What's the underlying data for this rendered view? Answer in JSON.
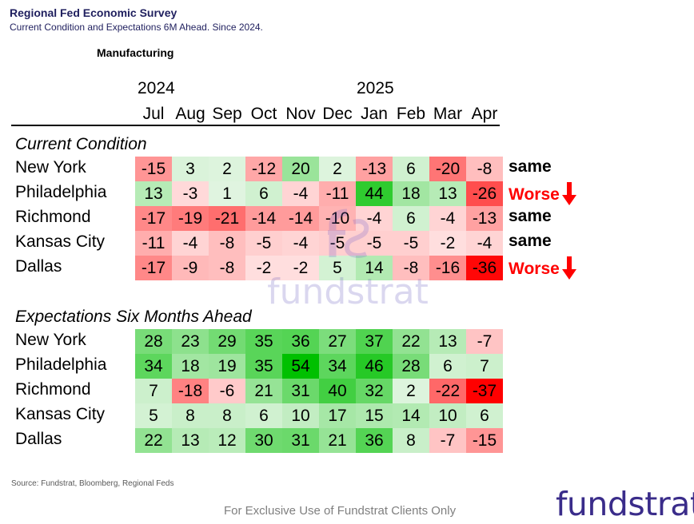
{
  "header": {
    "title": "Regional Fed Economic Survey",
    "subtitle": "Current Condition and Expectations 6M Ahead. Since 2024.",
    "sector": "Manufacturing"
  },
  "chart_data": {
    "type": "heatmap",
    "years": [
      "2024",
      "2025"
    ],
    "columns": [
      "Jul",
      "Aug",
      "Sep",
      "Oct",
      "Nov",
      "Dec",
      "Jan",
      "Feb",
      "Mar",
      "Apr"
    ],
    "sections": [
      {
        "title": "Current Condition",
        "rows": [
          {
            "region": "New York",
            "values": [
              -15,
              3,
              2,
              -12,
              20,
              2,
              -13,
              6,
              -20,
              -8
            ],
            "status": "same"
          },
          {
            "region": "Philadelphia",
            "values": [
              13,
              -3,
              1,
              6,
              -4,
              -11,
              44,
              18,
              13,
              -26
            ],
            "status": "Worse"
          },
          {
            "region": "Richmond",
            "values": [
              -17,
              -19,
              -21,
              -14,
              -14,
              -10,
              -4,
              6,
              -4,
              -13
            ],
            "status": "same"
          },
          {
            "region": "Kansas City",
            "values": [
              -11,
              -4,
              -8,
              -5,
              -4,
              -5,
              -5,
              -5,
              -2,
              -4
            ],
            "status": "same"
          },
          {
            "region": "Dallas",
            "values": [
              -17,
              -9,
              -8,
              -2,
              -2,
              5,
              14,
              -8,
              -16,
              -36
            ],
            "status": "Worse"
          }
        ]
      },
      {
        "title": "Expectations Six Months Ahead",
        "rows": [
          {
            "region": "New York",
            "values": [
              28,
              23,
              29,
              35,
              36,
              27,
              37,
              22,
              13,
              -7
            ]
          },
          {
            "region": "Philadelphia",
            "values": [
              34,
              18,
              19,
              35,
              54,
              34,
              46,
              28,
              6,
              7
            ]
          },
          {
            "region": "Richmond",
            "values": [
              7,
              -18,
              -6,
              21,
              31,
              40,
              32,
              2,
              -22,
              -37
            ]
          },
          {
            "region": "Kansas City",
            "values": [
              5,
              8,
              8,
              6,
              10,
              17,
              15,
              14,
              10,
              6
            ]
          },
          {
            "region": "Dallas",
            "values": [
              22,
              13,
              12,
              30,
              31,
              21,
              36,
              8,
              -7,
              -15
            ]
          }
        ]
      }
    ],
    "colors": {
      "positive_max": "#00c000",
      "negative_max": "#ff0000",
      "neutral": "#ffffff",
      "worse_text": "#ff0000"
    }
  },
  "watermark": {
    "text": "fundstrat",
    "icon": "fundstrat-logo-icon"
  },
  "footer": {
    "source": "Source: Fundstrat, Bloomberg, Regional Feds",
    "exclusive": "For Exclusive Use of Fundstrat Clients Only",
    "logo": "fundstrat"
  }
}
